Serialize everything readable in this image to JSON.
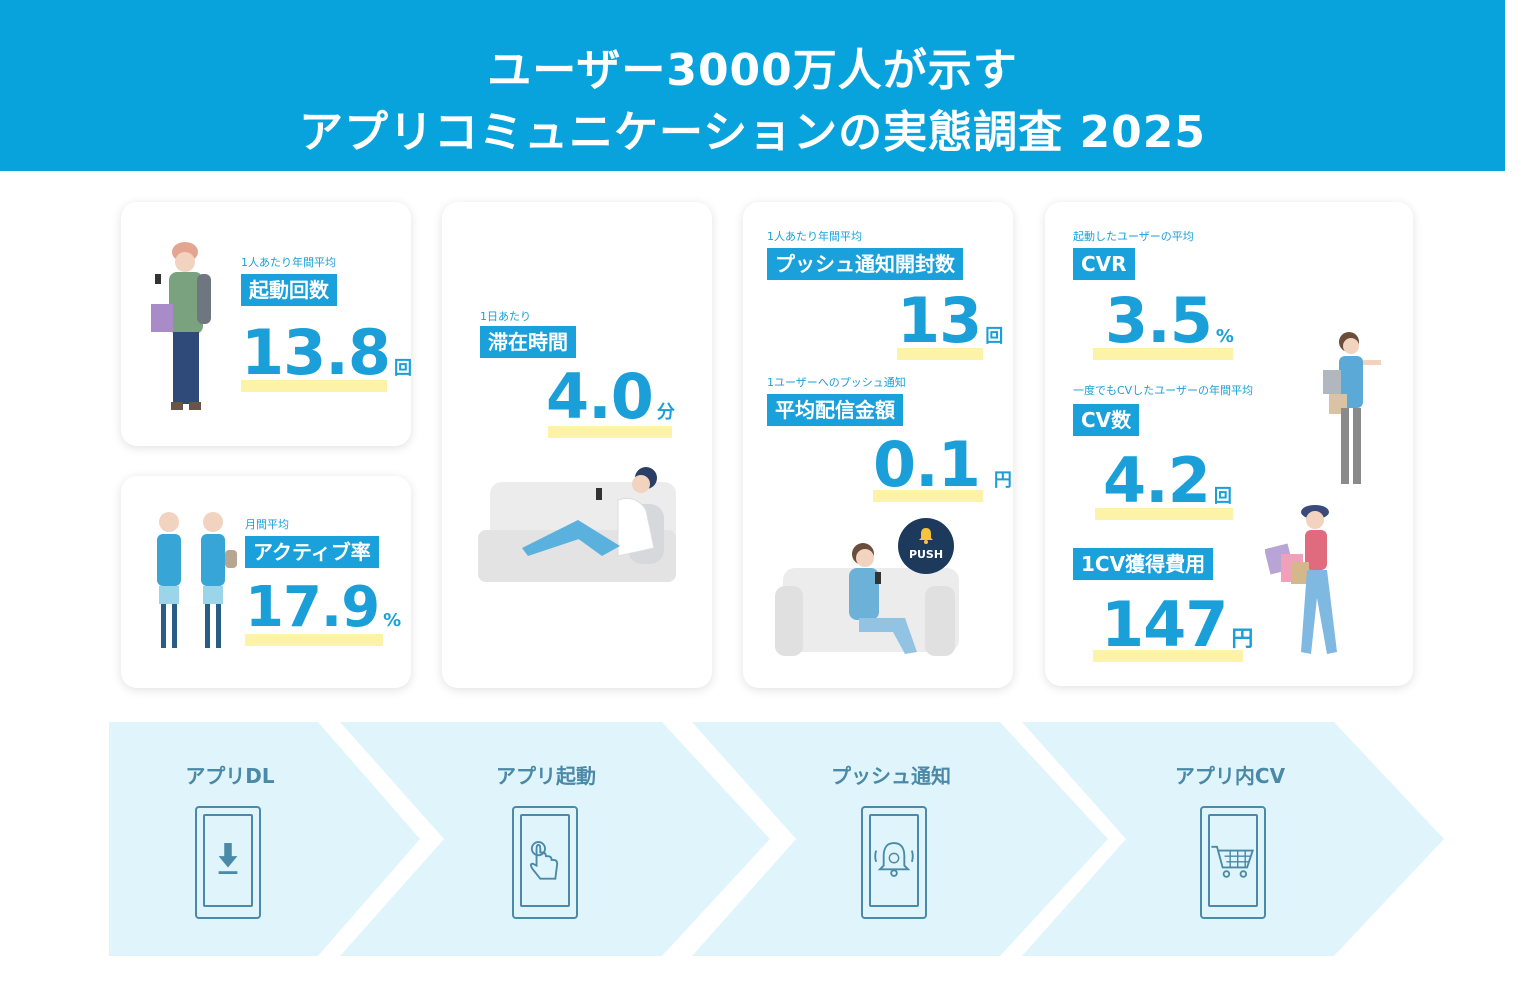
{
  "header": {
    "line1": "ユーザー3000万人が示す",
    "line2": "アプリコミュニケーションの実態調査 2025"
  },
  "stats": {
    "launch": {
      "caption": "1人あたり年間平均",
      "tag": "起動回数",
      "value": "13.8",
      "unit": "回"
    },
    "active": {
      "caption": "月間平均",
      "tag": "アクティブ率",
      "value": "17.9",
      "unit": "%"
    },
    "stay": {
      "caption": "1日あたり",
      "tag": "滞在時間",
      "value": "4.0",
      "unit": "分"
    },
    "push_open": {
      "caption": "1人あたり年間平均",
      "tag": "プッシュ通知開封数",
      "value": "13",
      "unit": "回"
    },
    "push_cost": {
      "caption": "1ユーザーへのプッシュ通知",
      "tag": "平均配信金額",
      "value": "0.1",
      "unit": "円"
    },
    "cvr": {
      "caption": "起動したユーザーの平均",
      "tag": "CVR",
      "value": "3.5",
      "unit": "%"
    },
    "cv_count": {
      "caption": "一度でもCVしたユーザーの年間平均",
      "tag": "CV数",
      "value": "4.2",
      "unit": "回"
    },
    "cv_cost": {
      "tag": "1CV獲得費用",
      "value": "147",
      "unit": "円"
    }
  },
  "push_badge": "PUSH",
  "flow": [
    {
      "label": "アプリDL",
      "icon": "download-icon"
    },
    {
      "label": "アプリ起動",
      "icon": "tap-hand-icon"
    },
    {
      "label": "プッシュ通知",
      "icon": "bell-icon"
    },
    {
      "label": "アプリ内CV",
      "icon": "cart-icon"
    }
  ]
}
